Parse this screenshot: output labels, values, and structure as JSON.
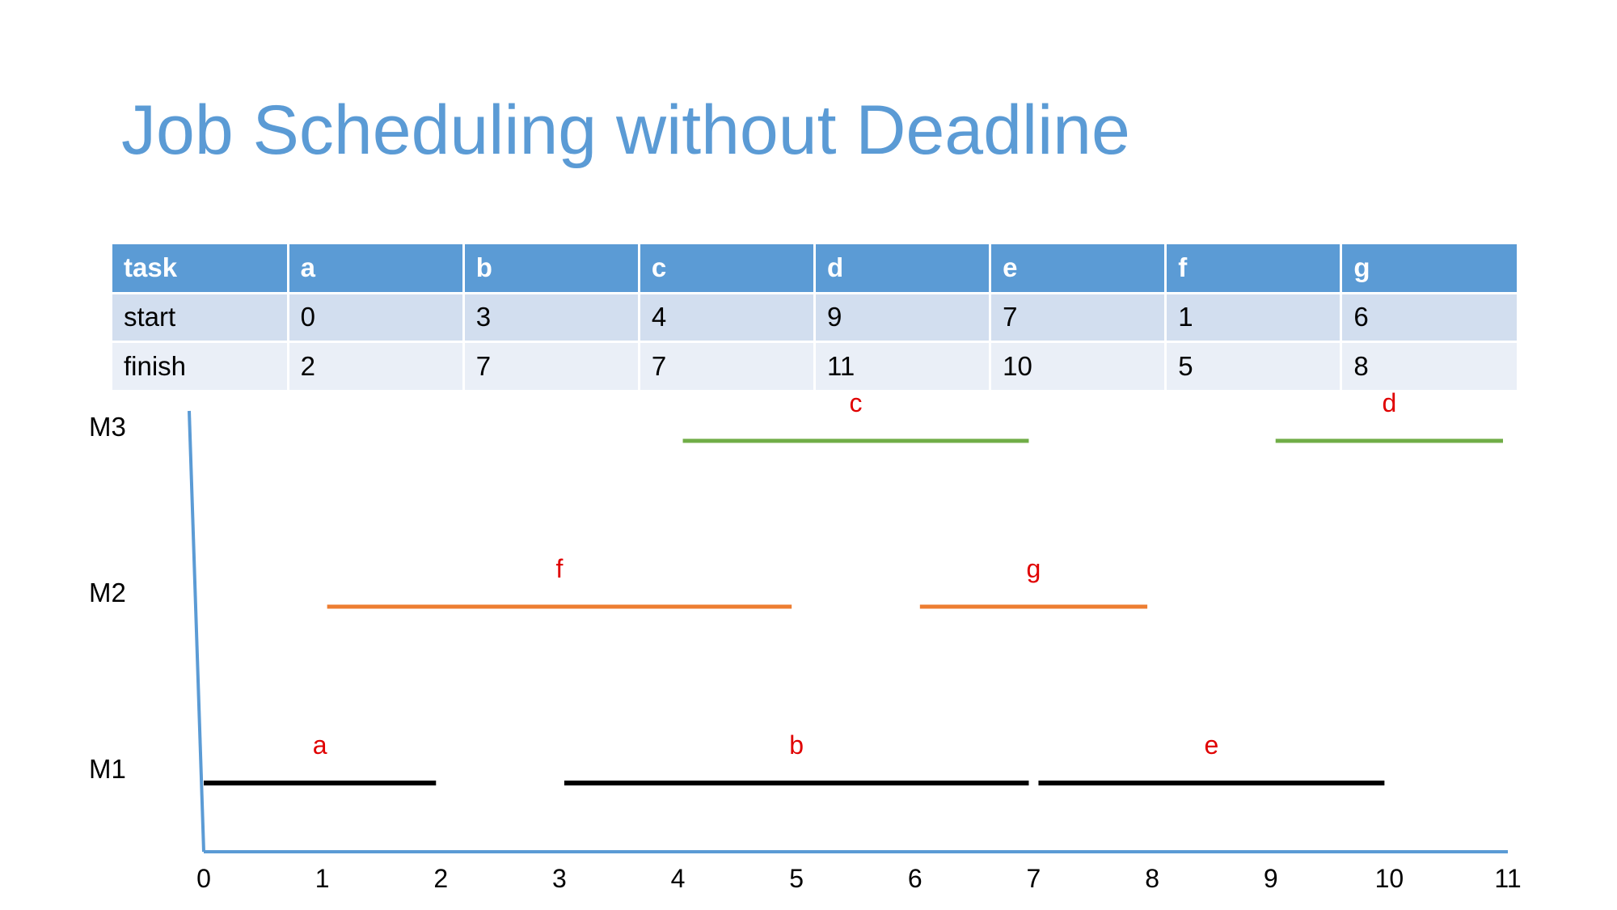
{
  "title": "Job Scheduling without Deadline",
  "table": {
    "header": [
      "task",
      "a",
      "b",
      "c",
      "d",
      "e",
      "f",
      "g"
    ],
    "rows": [
      [
        "start",
        "0",
        "3",
        "4",
        "9",
        "7",
        "1",
        "6"
      ],
      [
        "finish",
        "2",
        "7",
        "7",
        "11",
        "10",
        "5",
        "8"
      ]
    ]
  },
  "chart_data": {
    "type": "gantt",
    "x_ticks": [
      "0",
      "1",
      "2",
      "3",
      "4",
      "5",
      "6",
      "7",
      "8",
      "9",
      "10",
      "11"
    ],
    "xlim": [
      0,
      11
    ],
    "machines": [
      "M1",
      "M2",
      "M3"
    ],
    "bars": [
      {
        "machine": "M1",
        "task": "a",
        "start": 0,
        "finish": 2,
        "color": "#000000"
      },
      {
        "machine": "M1",
        "task": "b",
        "start": 3,
        "finish": 7,
        "color": "#000000"
      },
      {
        "machine": "M1",
        "task": "e",
        "start": 7,
        "finish": 10,
        "color": "#000000"
      },
      {
        "machine": "M2",
        "task": "f",
        "start": 1,
        "finish": 5,
        "color": "#ed7d31"
      },
      {
        "machine": "M2",
        "task": "g",
        "start": 6,
        "finish": 8,
        "color": "#ed7d31"
      },
      {
        "machine": "M3",
        "task": "c",
        "start": 4,
        "finish": 7,
        "color": "#70ad47"
      },
      {
        "machine": "M3",
        "task": "d",
        "start": 9,
        "finish": 11,
        "color": "#70ad47"
      }
    ],
    "axis_color": "#5b9bd5",
    "label_color": "#e00000"
  }
}
